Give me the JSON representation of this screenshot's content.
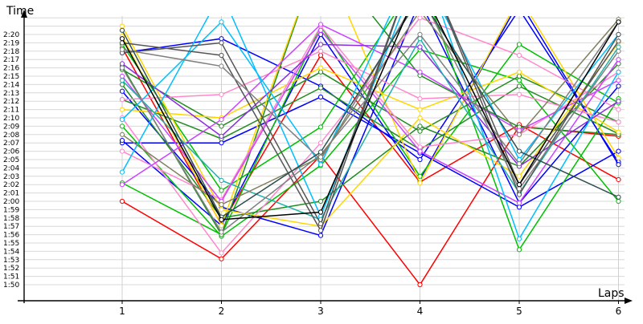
{
  "chart_data": {
    "type": "line",
    "xlabel": "Laps",
    "ylabel": "Time",
    "x": [
      1,
      2,
      3,
      4,
      5,
      6
    ],
    "x_tick_labels": [
      "1",
      "2",
      "3",
      "4",
      "5",
      "6"
    ],
    "y_tick_labels": [
      "1:50",
      "1:51",
      "1:52",
      "1:53",
      "1:54",
      "1:55",
      "1:56",
      "1:57",
      "1:58",
      "1:59",
      "2:00",
      "2:01",
      "2:02",
      "2:03",
      "2:04",
      "2:05",
      "2:06",
      "2:07",
      "2:08",
      "2:09",
      "2:10",
      "2:11",
      "2:12",
      "2:13",
      "2:14",
      "2:15",
      "2:16",
      "2:17",
      "2:18",
      "2:19",
      "2:20"
    ],
    "ylim_seconds": [
      110,
      140
    ],
    "y_unit": "seconds (m:ss)",
    "grid": true,
    "series": [
      {
        "color": "#ff0000",
        "values": [
          120.0,
          113.1,
          125.5,
          110.0,
          129.0,
          127.8
        ]
      },
      {
        "color": "#ff0000",
        "values": [
          138.4,
          117.2,
          137.5,
          122.3,
          129.2,
          122.6
        ]
      },
      {
        "color": "#0000ff",
        "values": [
          127.0,
          127.0,
          132.5,
          125.8,
          119.3,
          126.0
        ]
      },
      {
        "color": "#0000ff",
        "values": [
          133.2,
          119.3,
          115.9,
          144.0,
          119.8,
          133.8
        ]
      },
      {
        "color": "#0000ff",
        "values": [
          137.8,
          139.5,
          133.8,
          125.0,
          143.0,
          124.7
        ]
      },
      {
        "color": "#0000ff",
        "values": [
          127.3,
          117.1,
          140.0,
          122.6,
          144.0,
          124.4
        ]
      },
      {
        "color": "#00c000",
        "values": [
          129.0,
          115.8,
          124.3,
          138.2,
          134.5,
          120.0
        ]
      },
      {
        "color": "#00c000",
        "values": [
          138.8,
          121.3,
          128.9,
          147.0,
          114.2,
          132.3
        ]
      },
      {
        "color": "#00c000",
        "values": [
          122.2,
          116.0,
          141.0,
          123.0,
          138.8,
          131.8
        ]
      },
      {
        "color": "#228b22",
        "values": [
          135.8,
          129.0,
          135.5,
          128.4,
          135.0,
          129.5
        ]
      },
      {
        "color": "#228b22",
        "values": [
          132.2,
          127.5,
          133.6,
          126.2,
          133.8,
          128.1
        ]
      },
      {
        "color": "#228b22",
        "values": [
          136.2,
          116.0,
          150.0,
          135.1,
          128.9,
          128.0
        ]
      },
      {
        "color": "#228b22",
        "values": [
          134.0,
          118.0,
          120.0,
          129.0,
          124.2,
          136.5
        ]
      },
      {
        "color": "#ffd700",
        "values": [
          131.0,
          130.0,
          136.0,
          131.0,
          135.5,
          128.3
        ]
      },
      {
        "color": "#ffd700",
        "values": [
          139.8,
          117.1,
          150.0,
          122.2,
          144.5,
          125.2
        ]
      },
      {
        "color": "#ffd700",
        "values": [
          141.0,
          119.0,
          117.0,
          130.0,
          123.0,
          139.0
        ]
      },
      {
        "color": "#ff88cc",
        "values": [
          132.2,
          132.8,
          138.0,
          132.3,
          132.8,
          129.5
        ]
      },
      {
        "color": "#ff88cc",
        "values": [
          130.0,
          113.8,
          127.0,
          142.0,
          137.5,
          131.0
        ]
      },
      {
        "color": "#ff88cc",
        "values": [
          126.0,
          120.2,
          141.0,
          126.5,
          128.0,
          135.5
        ]
      },
      {
        "color": "#cc44ff",
        "values": [
          122.0,
          129.8,
          141.2,
          135.5,
          128.5,
          134.5
        ]
      },
      {
        "color": "#cc44ff",
        "values": [
          135.0,
          120.0,
          140.5,
          126.0,
          119.8,
          137.0
        ]
      },
      {
        "color": "#8a2be2",
        "values": [
          136.5,
          127.8,
          138.8,
          138.5,
          124.2,
          132.0
        ]
      },
      {
        "color": "#00bfff",
        "values": [
          129.8,
          141.5,
          124.4,
          150.0,
          115.5,
          135.5
        ]
      },
      {
        "color": "#00bfff",
        "values": [
          123.5,
          145.0,
          118.2,
          148.0,
          125.0,
          140.0
        ]
      },
      {
        "color": "#20b2aa",
        "values": [
          134.5,
          122.5,
          117.8,
          139.5,
          121.0,
          138.5
        ]
      },
      {
        "color": "#555555",
        "values": [
          137.8,
          139.0,
          117.3,
          150.0,
          122.0,
          139.2
        ]
      },
      {
        "color": "#555555",
        "values": [
          139.0,
          137.5,
          116.5,
          150.0,
          120.8,
          140.0
        ]
      },
      {
        "color": "#808080",
        "values": [
          138.2,
          136.2,
          125.0,
          145.0,
          121.5,
          138.0
        ]
      },
      {
        "color": "#808080",
        "values": [
          136.0,
          116.3,
          125.6,
          140.0,
          124.5,
          141.5
        ]
      },
      {
        "color": "#808060",
        "values": [
          128.0,
          119.6,
          125.3,
          142.8,
          128.0,
          141.8
        ]
      },
      {
        "color": "#2f4f4f",
        "values": [
          140.5,
          118.1,
          125.9,
          144.5,
          126.0,
          120.5
        ]
      },
      {
        "color": "#000000",
        "values": [
          139.5,
          117.8,
          118.7,
          146.0,
          122.0,
          141.5
        ]
      }
    ]
  }
}
